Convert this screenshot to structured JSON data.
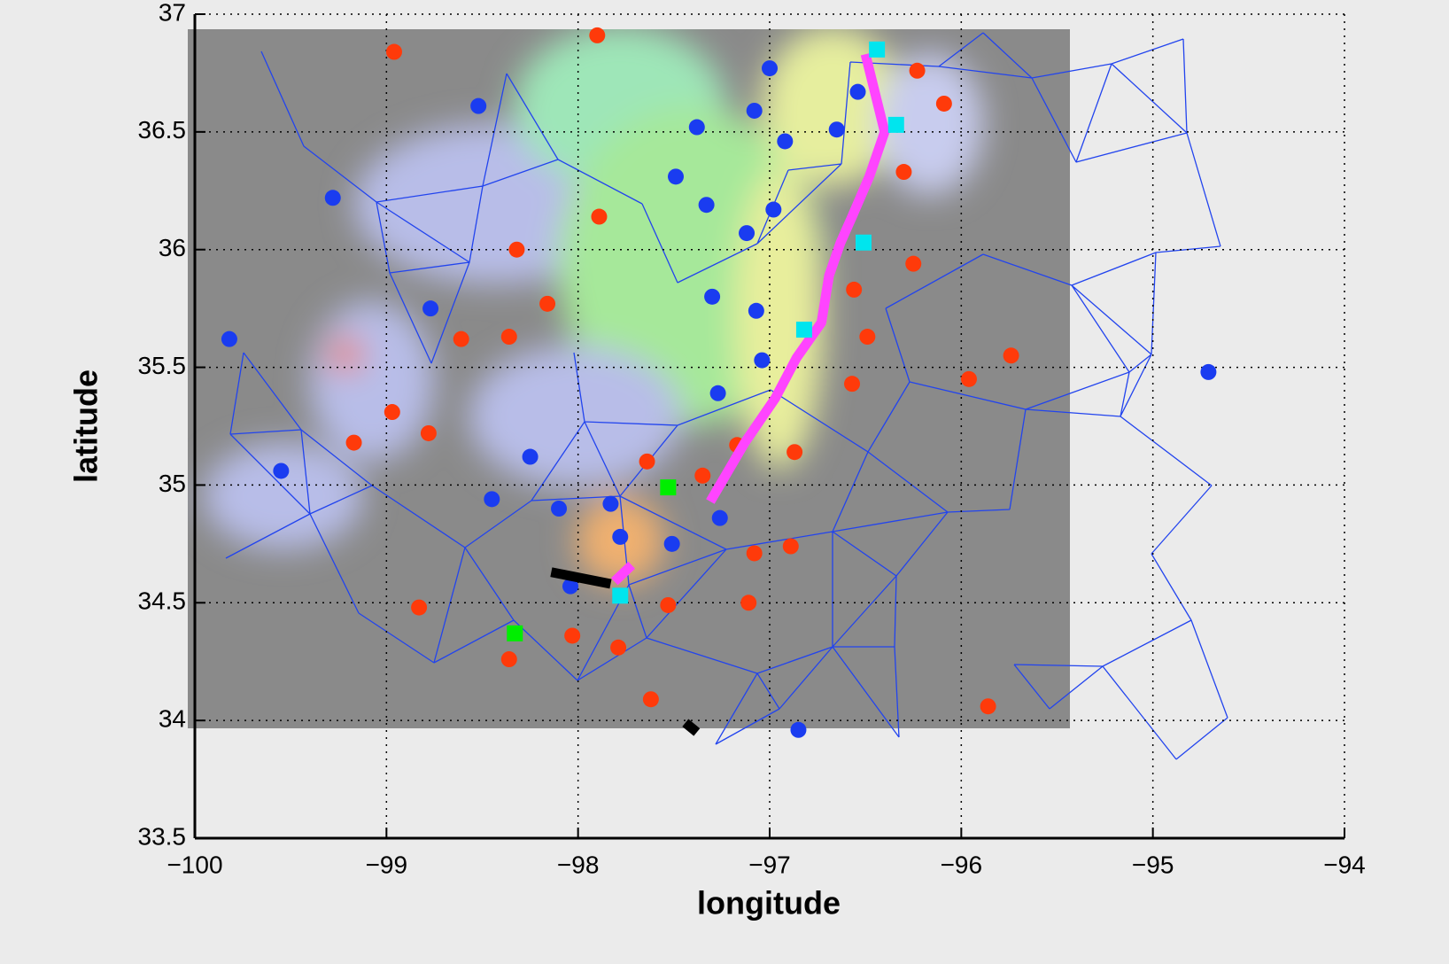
{
  "chart_data": {
    "type": "scatter",
    "xlabel": "longitude",
    "ylabel": "latitude",
    "xlim": [
      -100,
      -94
    ],
    "ylim": [
      33.5,
      37
    ],
    "xticks": [
      {
        "value": -100,
        "label": "−100"
      },
      {
        "value": -99,
        "label": "−99"
      },
      {
        "value": -98,
        "label": "−98"
      },
      {
        "value": -97,
        "label": "−97"
      },
      {
        "value": -96,
        "label": "−96"
      },
      {
        "value": -95,
        "label": "−95"
      },
      {
        "value": -94,
        "label": "−94"
      }
    ],
    "yticks": [
      33.5,
      34,
      34.5,
      35,
      35.5,
      36,
      36.5,
      37
    ],
    "grid": true,
    "series": [
      {
        "color": "#ff3a0a",
        "marker": "circle",
        "x": [
          -98.96,
          -97.9,
          -96.23,
          -96.09,
          -96.3,
          -97.89,
          -98.32,
          -96.25,
          -96.56,
          -98.16,
          -98.61,
          -98.36,
          -96.49,
          -95.74,
          -95.96,
          -96.57,
          -98.97,
          -98.78,
          -99.17,
          -97.17,
          -96.87,
          -97.64,
          -97.35,
          -97.08,
          -96.89,
          -97.53,
          -97.11,
          -98.83,
          -98.03,
          -97.79,
          -98.36,
          -97.62,
          -95.86
        ],
        "values": [
          36.84,
          36.91,
          36.76,
          36.62,
          36.33,
          36.14,
          36.0,
          35.94,
          35.83,
          35.77,
          35.62,
          35.63,
          35.63,
          35.55,
          35.45,
          35.43,
          35.31,
          35.22,
          35.18,
          35.17,
          35.14,
          35.1,
          35.04,
          34.71,
          34.74,
          34.49,
          34.5,
          34.48,
          34.36,
          34.31,
          34.26,
          34.09,
          34.06
        ]
      },
      {
        "color": "#1a3cf0",
        "marker": "circle",
        "x": [
          -97.0,
          -98.52,
          -97.08,
          -96.54,
          -97.38,
          -96.92,
          -96.65,
          -99.28,
          -97.49,
          -97.33,
          -96.98,
          -97.12,
          -98.77,
          -97.3,
          -97.07,
          -99.82,
          -97.04,
          -97.27,
          -98.25,
          -99.55,
          -98.45,
          -98.1,
          -97.83,
          -97.78,
          -97.51,
          -97.26,
          -98.04,
          -96.85,
          -94.71
        ],
        "values": [
          36.77,
          36.61,
          36.59,
          36.67,
          36.52,
          36.46,
          36.51,
          36.22,
          36.31,
          36.19,
          36.17,
          36.07,
          35.75,
          35.8,
          35.74,
          35.62,
          35.53,
          35.39,
          35.12,
          35.06,
          34.94,
          34.9,
          34.92,
          34.78,
          34.75,
          34.86,
          34.57,
          33.96,
          35.48
        ]
      },
      {
        "color": "#ff44ff",
        "marker": "line",
        "x": [
          -96.5,
          -96.4,
          -96.48,
          -96.57,
          -96.63,
          -96.69,
          -96.73,
          -96.86,
          -96.97,
          -97.13,
          -97.31,
          null,
          -97.81,
          -97.72
        ],
        "values": [
          36.83,
          36.5,
          36.31,
          36.14,
          36.03,
          35.89,
          35.69,
          35.54,
          35.37,
          35.18,
          34.93,
          null,
          34.59,
          34.66
        ]
      },
      {
        "color": "#000000",
        "marker": "line",
        "x": [
          -98.14,
          -97.83,
          null,
          -97.44,
          -97.38
        ],
        "values": [
          34.63,
          34.58,
          null,
          33.99,
          33.95
        ]
      },
      {
        "color": "#00e5ee",
        "marker": "square",
        "x": [
          -96.44,
          -96.34,
          -96.51,
          -96.82,
          -97.78
        ],
        "values": [
          36.85,
          36.53,
          36.03,
          35.66,
          34.53
        ]
      },
      {
        "color": "#00ee00",
        "marker": "square",
        "x": [
          -97.53,
          -98.33
        ],
        "values": [
          34.99,
          34.37
        ]
      }
    ]
  }
}
